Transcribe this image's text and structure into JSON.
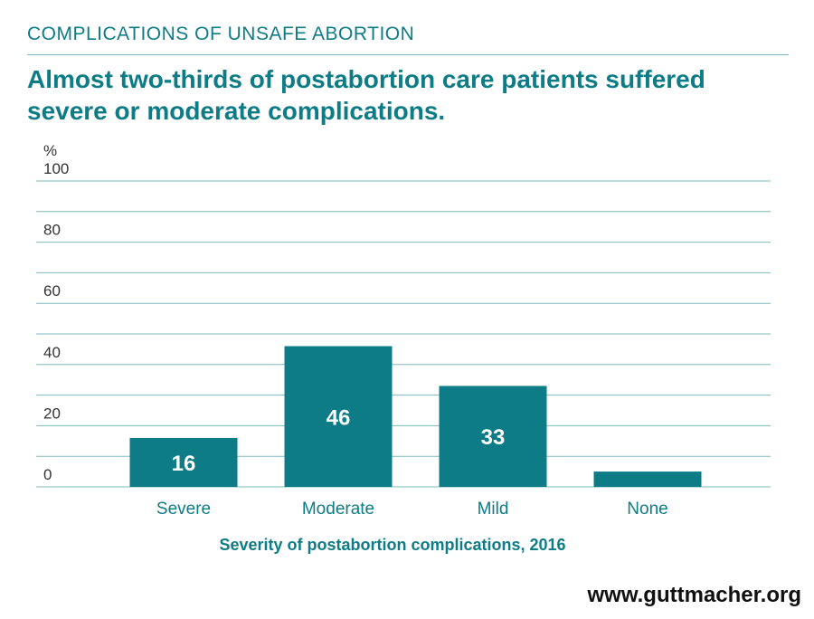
{
  "header": {
    "kicker": "COMPLICATIONS OF UNSAFE ABORTION",
    "headline": "Almost two-thirds of postabortion care patients suffered severe or moderate complications."
  },
  "footer": {
    "url": "www.guttmacher.org"
  },
  "colors": {
    "accent": "#0e7c86",
    "grid": "#7fb8be"
  },
  "chart_data": {
    "type": "bar",
    "categories": [
      "Severe",
      "Moderate",
      "Mild",
      "None"
    ],
    "values": [
      16,
      46,
      33,
      5
    ],
    "data_labels": [
      "16",
      "46",
      "33",
      ""
    ],
    "unit_label": "%",
    "xlabel": "Severity of postabortion complications, 2016",
    "ylabel": "",
    "ylim": [
      0,
      100
    ],
    "yticks": [
      0,
      20,
      40,
      60,
      80,
      100
    ],
    "grid_step": 10,
    "grid": true,
    "legend": "none"
  }
}
